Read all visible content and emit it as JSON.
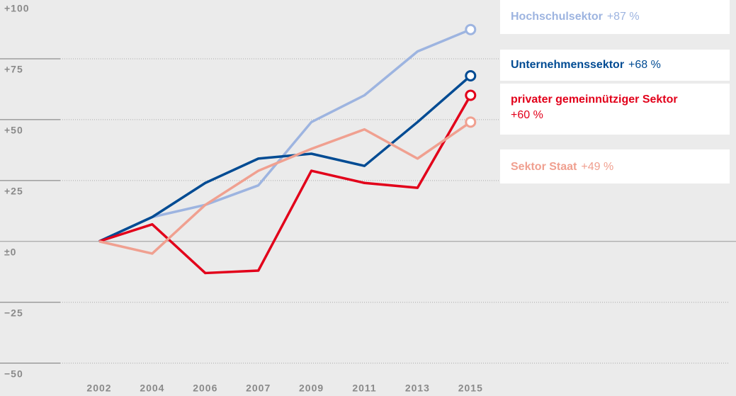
{
  "chart_data": {
    "type": "line",
    "categories": [
      "2002",
      "2004",
      "2006",
      "2007",
      "2009",
      "2011",
      "2013",
      "2015"
    ],
    "series": [
      {
        "name": "Hochschulsektor",
        "color": "#9db4e0",
        "values": [
          0,
          10,
          15,
          23,
          49,
          60,
          78,
          87
        ],
        "value_labels": [
          "+87 %"
        ]
      },
      {
        "name": "Unternehmenssektor",
        "color": "#004b93",
        "values": [
          0,
          10,
          24,
          34,
          36,
          31,
          49,
          68
        ],
        "value_labels": [
          "+68 %"
        ]
      },
      {
        "name": "privater gemeinnütziger Sektor",
        "color": "#e2001a",
        "values": [
          0,
          7,
          -13,
          -12,
          29,
          24,
          22,
          60
        ],
        "value_labels": [
          "+60 %"
        ]
      },
      {
        "name": "Sektor Staat",
        "color": "#f0a090",
        "values": [
          0,
          -5,
          15,
          29,
          38,
          46,
          34,
          49
        ],
        "value_labels": [
          "+49 %"
        ]
      }
    ],
    "ylim": [
      -60,
      100
    ],
    "yticks": [
      {
        "value": 100,
        "label": "+100"
      },
      {
        "value": 75,
        "label": "+75"
      },
      {
        "value": 50,
        "label": "+50"
      },
      {
        "value": 25,
        "label": "+25"
      },
      {
        "value": 0,
        "label": "±0"
      },
      {
        "value": -25,
        "label": "−25"
      },
      {
        "value": -50,
        "label": "−50"
      }
    ],
    "grid": true
  }
}
